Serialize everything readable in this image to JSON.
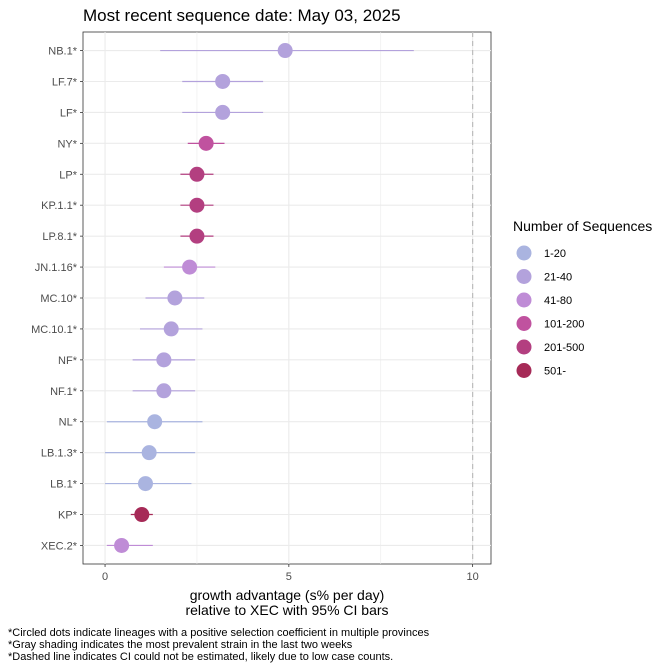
{
  "chart_data": {
    "type": "scatter",
    "title": "Most recent sequence date: May 03, 2025",
    "xlabel": "growth advantage (s% per day)",
    "xlabel2": "relative to  XEC  with 95% CI bars",
    "xlim": [
      -0.6,
      10.5
    ],
    "xticks": [
      0,
      5,
      10
    ],
    "reference_x": 10,
    "categories": [
      "NB.1*",
      "LF.7*",
      "LF*",
      "NY*",
      "LP*",
      "KP.1.1*",
      "LP.8.1*",
      "JN.1.16*",
      "MC.10*",
      "MC.10.1*",
      "NF*",
      "NF.1*",
      "NL*",
      "LB.1.3*",
      "LB.1*",
      "KP*",
      "XEC.2*"
    ],
    "points": [
      {
        "label": "NB.1*",
        "x": 4.9,
        "lo": 1.5,
        "hi": 8.4,
        "group": "21-40"
      },
      {
        "label": "LF.7*",
        "x": 3.2,
        "lo": 2.1,
        "hi": 4.3,
        "group": "21-40"
      },
      {
        "label": "LF*",
        "x": 3.2,
        "lo": 2.1,
        "hi": 4.3,
        "group": "21-40"
      },
      {
        "label": "NY*",
        "x": 2.75,
        "lo": 2.25,
        "hi": 3.25,
        "group": "101-200"
      },
      {
        "label": "LP*",
        "x": 2.5,
        "lo": 2.05,
        "hi": 2.95,
        "group": "201-500"
      },
      {
        "label": "KP.1.1*",
        "x": 2.5,
        "lo": 2.05,
        "hi": 2.95,
        "group": "201-500"
      },
      {
        "label": "LP.8.1*",
        "x": 2.5,
        "lo": 2.05,
        "hi": 2.95,
        "group": "201-500"
      },
      {
        "label": "JN.1.16*",
        "x": 2.3,
        "lo": 1.6,
        "hi": 3.0,
        "group": "41-80"
      },
      {
        "label": "MC.10*",
        "x": 1.9,
        "lo": 1.1,
        "hi": 2.7,
        "group": "21-40"
      },
      {
        "label": "MC.10.1*",
        "x": 1.8,
        "lo": 0.95,
        "hi": 2.65,
        "group": "21-40"
      },
      {
        "label": "NF*",
        "x": 1.6,
        "lo": 0.75,
        "hi": 2.45,
        "group": "21-40"
      },
      {
        "label": "NF.1*",
        "x": 1.6,
        "lo": 0.75,
        "hi": 2.45,
        "group": "21-40"
      },
      {
        "label": "NL*",
        "x": 1.35,
        "lo": 0.05,
        "hi": 2.65,
        "group": "1-20"
      },
      {
        "label": "LB.1.3*",
        "x": 1.2,
        "lo": 0.0,
        "hi": 2.45,
        "group": "1-20"
      },
      {
        "label": "LB.1*",
        "x": 1.1,
        "lo": 0.0,
        "hi": 2.35,
        "group": "1-20"
      },
      {
        "label": "KP*",
        "x": 1.0,
        "lo": 0.7,
        "hi": 1.3,
        "group": "501-"
      },
      {
        "label": "XEC.2*",
        "x": 0.45,
        "lo": 0.05,
        "hi": 1.3,
        "group": "41-80"
      }
    ],
    "legend": {
      "title": "Number of Sequences",
      "placement": "right",
      "entries": [
        {
          "label": "1-20",
          "color": "#aab4e0"
        },
        {
          "label": "21-40",
          "color": "#b3a2dc"
        },
        {
          "label": "41-80",
          "color": "#bf8cd6"
        },
        {
          "label": "101-200",
          "color": "#c0529f"
        },
        {
          "label": "201-500",
          "color": "#b33f80"
        },
        {
          "label": "501-",
          "color": "#a62a57"
        }
      ]
    },
    "grid": true
  },
  "footnotes": [
    "*Circled dots indicate lineages with a positive selection coefficient in multiple provinces",
    "*Gray shading indicates the most prevalent strain in the last two weeks",
    "*Dashed line indicates CI could not be estimated, likely due to low case counts."
  ]
}
